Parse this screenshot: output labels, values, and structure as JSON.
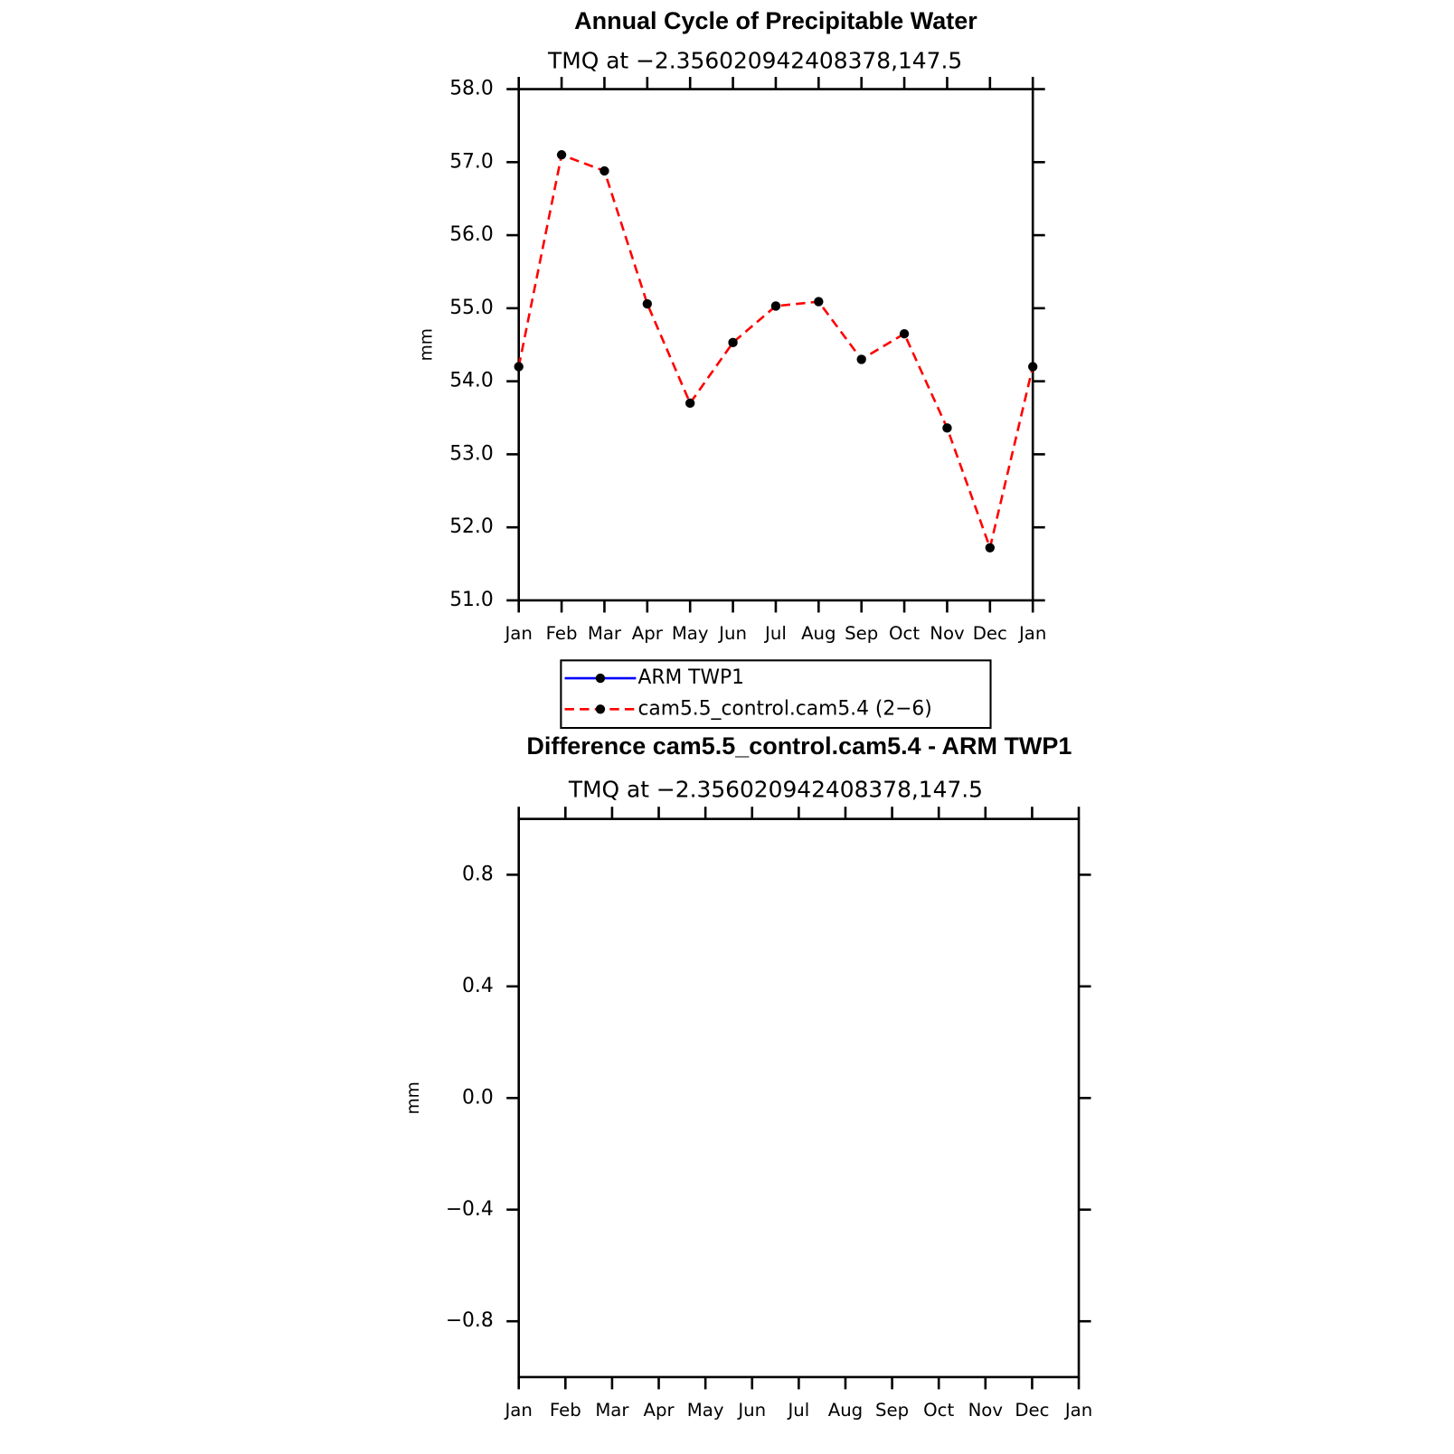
{
  "chart_data": [
    {
      "type": "line",
      "title": "Annual Cycle of Precipitable Water",
      "subtitle": "TMQ at −2.356020942408378,147.5",
      "y_label": "mm",
      "categories": [
        "Jan",
        "Feb",
        "Mar",
        "Apr",
        "May",
        "Jun",
        "Jul",
        "Aug",
        "Sep",
        "Oct",
        "Nov",
        "Dec",
        "Jan"
      ],
      "series": [
        {
          "name": "ARM TWP1",
          "color": "#0000ff",
          "linestyle": "solid",
          "values": [
            null,
            null,
            null,
            null,
            null,
            null,
            null,
            null,
            null,
            null,
            null,
            null,
            null
          ]
        },
        {
          "name": "cam5.5_control.cam5.4 (2−6)",
          "color": "#ff0000",
          "linestyle": "dashed",
          "values": [
            54.2,
            57.1,
            56.88,
            55.06,
            53.7,
            54.53,
            55.03,
            55.09,
            54.3,
            54.65,
            53.36,
            51.72,
            54.2
          ]
        }
      ],
      "ylim": [
        51,
        58
      ],
      "yticks": [
        {
          "value": 51,
          "label": "51.0"
        },
        {
          "value": 52,
          "label": "52.0"
        },
        {
          "value": 53,
          "label": "53.0"
        },
        {
          "value": 54,
          "label": "54.0"
        },
        {
          "value": 55,
          "label": "55.0"
        },
        {
          "value": 56,
          "label": "56.0"
        },
        {
          "value": 57,
          "label": "57.0"
        },
        {
          "value": 58,
          "label": "58.0"
        }
      ],
      "marker_color": "#000000",
      "legend": "bottom"
    },
    {
      "type": "line",
      "title": "Difference cam5.5_control.cam5.4 - ARM TWP1",
      "subtitle": "TMQ at −2.356020942408378,147.5",
      "y_label": "mm",
      "categories": [
        "Jan",
        "Feb",
        "Mar",
        "Apr",
        "May",
        "Jun",
        "Jul",
        "Aug",
        "Sep",
        "Oct",
        "Nov",
        "Dec",
        "Jan"
      ],
      "values": [
        null,
        null,
        null,
        null,
        null,
        null,
        null,
        null,
        null,
        null,
        null,
        null,
        null
      ],
      "ylim": [
        -1,
        1
      ],
      "yticks": [
        {
          "value": -0.8,
          "label": "−0.8"
        },
        {
          "value": -0.4,
          "label": "−0.4"
        },
        {
          "value": 0,
          "label": "0.0"
        },
        0.4,
        0.8
      ]
    }
  ]
}
